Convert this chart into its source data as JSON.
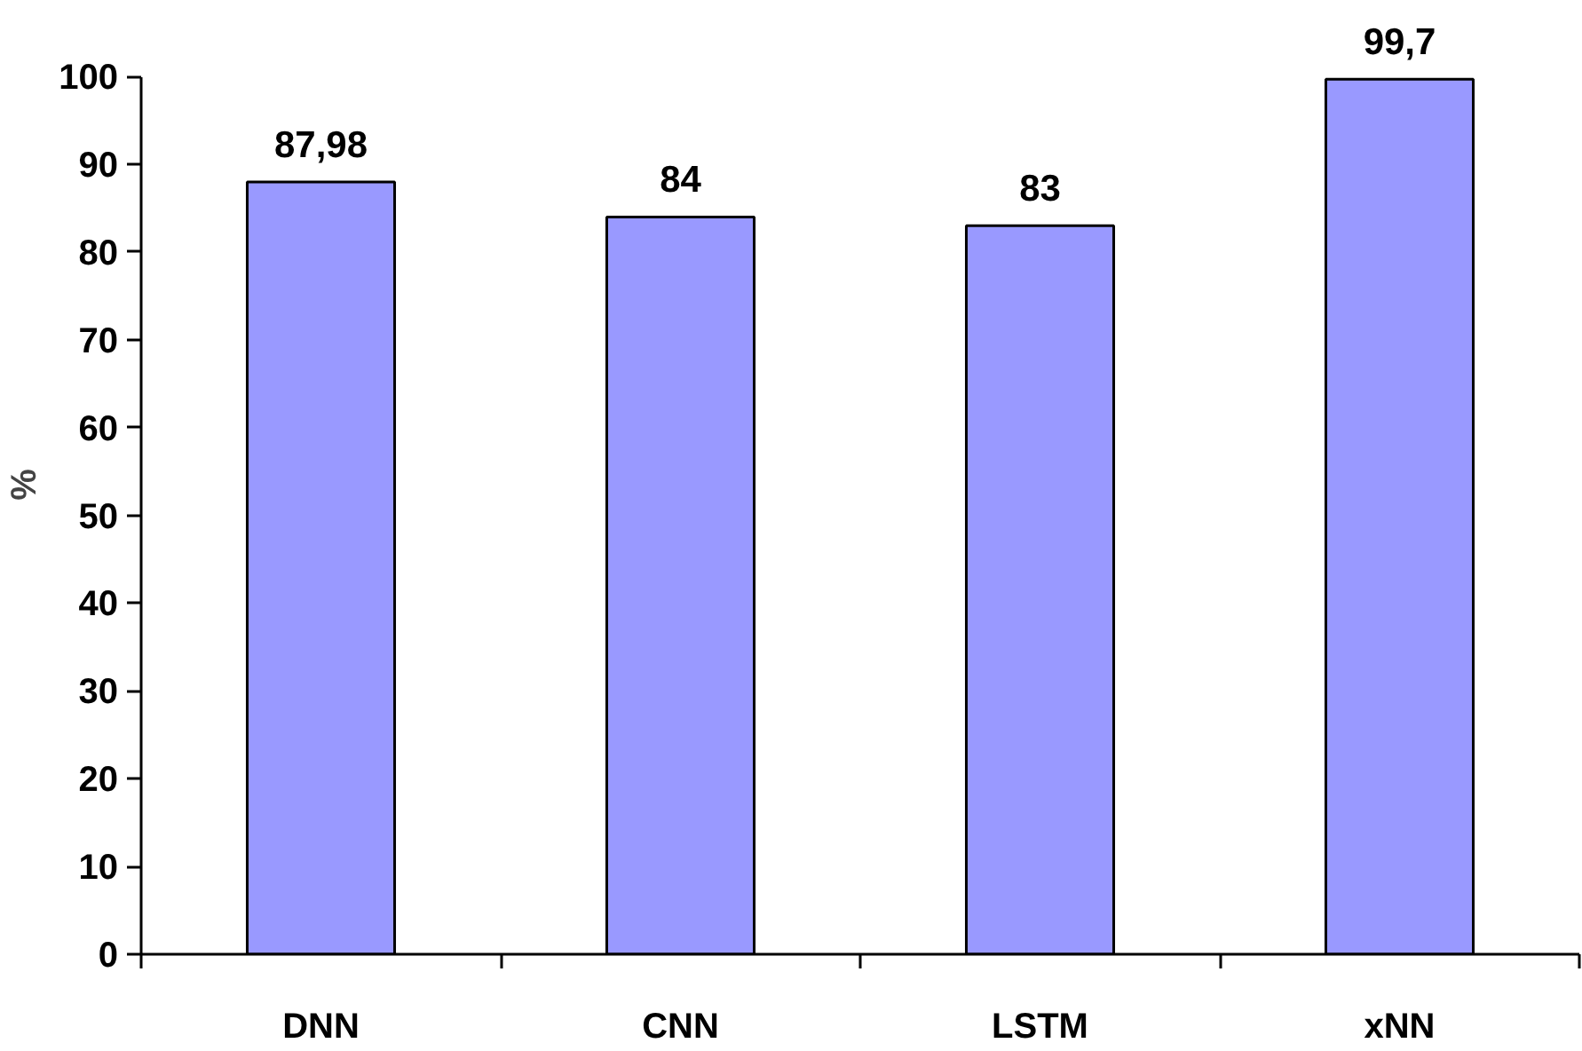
{
  "chart_data": {
    "type": "bar",
    "ylabel": "%",
    "categories": [
      "DNN",
      "CNN",
      "LSTM",
      "xNN"
    ],
    "values": [
      87.98,
      84,
      83,
      99.7
    ],
    "value_labels": [
      "87,98",
      "84",
      "83",
      "99,7"
    ],
    "color": "#9999ff",
    "ylim": [
      0,
      100
    ],
    "yticks": [
      0,
      10,
      20,
      30,
      40,
      50,
      60,
      70,
      80,
      90,
      100
    ],
    "grid": false
  }
}
